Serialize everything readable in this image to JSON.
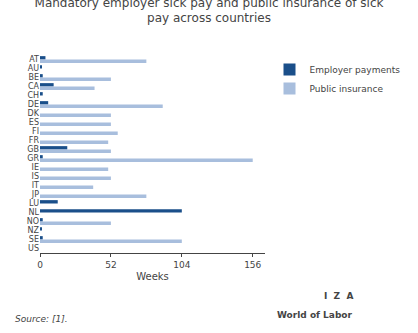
{
  "chart_data": {
    "type": "bar",
    "orientation": "horizontal",
    "title": "Mandatory employer sick pay and public insurance of sick\npay across countries",
    "categories": [
      "AT",
      "AU",
      "BE",
      "CA",
      "CH",
      "DE",
      "DK",
      "ES",
      "FI",
      "FR",
      "GB",
      "GR",
      "IE",
      "IS",
      "IT",
      "JP",
      "LU",
      "NL",
      "NO",
      "NZ",
      "SE",
      "US"
    ],
    "series": [
      {
        "name": "Employer payments",
        "color": "#1a4f8a",
        "values": [
          4,
          1,
          2,
          10,
          2,
          6,
          0,
          0,
          0,
          0,
          20,
          2,
          0,
          0,
          0,
          0,
          13,
          104,
          2,
          1,
          2,
          0
        ]
      },
      {
        "name": "Public insurance",
        "color": "#a8bedd",
        "values": [
          78,
          0,
          52,
          40,
          0,
          90,
          52,
          52,
          57,
          50,
          52,
          156,
          50,
          52,
          39,
          78,
          0,
          0,
          52,
          0,
          104,
          0
        ]
      }
    ],
    "xlabel": "Weeks",
    "xlim": [
      0,
      165
    ],
    "xticks": [
      0,
      52,
      104,
      156
    ],
    "grid": false,
    "legend": "upper right",
    "annotations": [
      "Source: [1].",
      "I  Z  A",
      "World of Labor"
    ]
  }
}
